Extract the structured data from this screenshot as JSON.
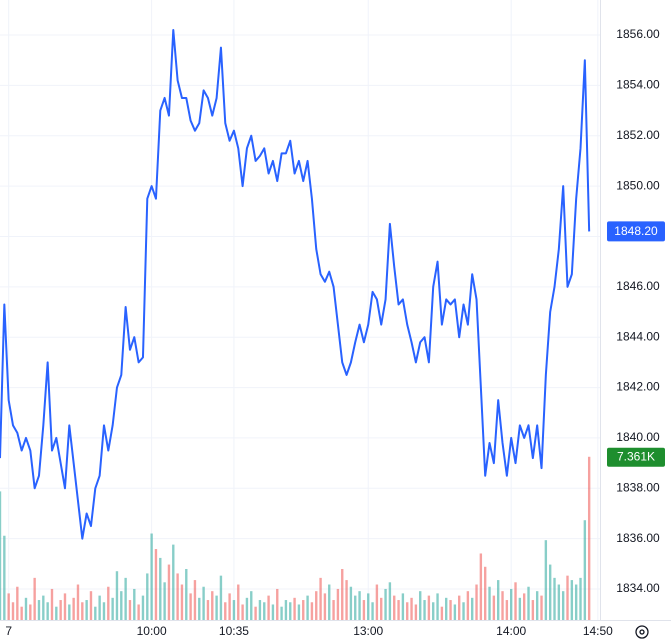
{
  "chart_data": {
    "type": "line",
    "xlim": [
      0,
      138.5
    ],
    "xticks": [
      {
        "value": 2,
        "label": "7"
      },
      {
        "value": 35,
        "label": "10:00"
      },
      {
        "value": 54,
        "label": "10:35"
      },
      {
        "value": 85,
        "label": "13:00"
      },
      {
        "value": 118,
        "label": "14:00"
      },
      {
        "value": 138,
        "label": "14:50"
      }
    ],
    "ylim": [
      1832.77,
      1857.39
    ],
    "yticks": [
      {
        "value": 1834,
        "label": "1834.00"
      },
      {
        "value": 1836,
        "label": "1836.00"
      },
      {
        "value": 1838,
        "label": "1838.00"
      },
      {
        "value": 1840,
        "label": "1840.00"
      },
      {
        "value": 1842,
        "label": "1842.00"
      },
      {
        "value": 1844,
        "label": "1844.00"
      },
      {
        "value": 1846,
        "label": "1846.00"
      },
      {
        "value": 1848,
        "label": "1848.00"
      },
      {
        "value": 1850,
        "label": "1850.00"
      },
      {
        "value": 1852,
        "label": "1852.00"
      },
      {
        "value": 1854,
        "label": "1854.00"
      },
      {
        "value": 1856,
        "label": "1856.00"
      }
    ],
    "grid": true,
    "volume_ylim": [
      0,
      27.96
    ],
    "up_color": "#26a69a",
    "down_color": "#ef5350",
    "volume_badge_color": "#1e8e2e",
    "series": [
      {
        "color": "#2962ff",
        "last_label": "1848.20",
        "values": [
          1839.2,
          1845.3,
          1841.5,
          1840.5,
          1840.2,
          1839.5,
          1840,
          1839.5,
          1838,
          1838.5,
          1840.5,
          1843,
          1839.5,
          1840,
          1839,
          1838,
          1840.5,
          1839,
          1837.5,
          1836,
          1837,
          1836.5,
          1838,
          1838.5,
          1840.5,
          1839.5,
          1840.5,
          1842,
          1842.5,
          1845.2,
          1843.5,
          1844,
          1843,
          1843.2,
          1849.5,
          1850,
          1849.5,
          1853,
          1853.5,
          1852.8,
          1856.2,
          1854.2,
          1853.5,
          1853.5,
          1852.6,
          1852.2,
          1852.5,
          1853.8,
          1853.5,
          1852.8,
          1853.5,
          1855.5,
          1852.5,
          1851.8,
          1852.2,
          1851.5,
          1850,
          1851.5,
          1852,
          1851,
          1851.2,
          1851.5,
          1850.5,
          1851,
          1850.2,
          1851.3,
          1851.3,
          1851.8,
          1850.5,
          1851,
          1850.2,
          1851,
          1849.5,
          1847.5,
          1846.5,
          1846.2,
          1846.6,
          1846,
          1844.5,
          1843,
          1842.5,
          1843,
          1843.8,
          1844.5,
          1843.8,
          1844.5,
          1845.8,
          1845.5,
          1844.5,
          1845.5,
          1848.5,
          1846.8,
          1845.3,
          1845.5,
          1844.5,
          1843.8,
          1843,
          1843.8,
          1844,
          1843,
          1846,
          1847,
          1844.5,
          1845.5,
          1845.3,
          1845.5,
          1844,
          1845.3,
          1844.5,
          1846.5,
          1845.5,
          1842,
          1838.5,
          1839.8,
          1839,
          1841.5,
          1839.8,
          1838.5,
          1840,
          1839,
          1840.5,
          1840,
          1840.5,
          1839.2,
          1840.5,
          1838.8,
          1842.5,
          1845,
          1846,
          1847.5,
          1850,
          1846,
          1846.5,
          1849.5,
          1851.5,
          1855,
          1848.2
        ]
      },
      {
        "type": "volume",
        "last_label": "7.361K",
        "values": [
          5.8,
          3.8,
          1.2,
          0.8,
          1.5,
          0.6,
          1.0,
          0.7,
          1.9,
          0.9,
          1.1,
          0.8,
          1.4,
          0.6,
          0.9,
          1.2,
          0.7,
          1.0,
          1.6,
          0.8,
          0.9,
          1.3,
          0.6,
          1.1,
          0.8,
          1.5,
          1.0,
          2.2,
          1.3,
          1.9,
          0.9,
          1.4,
          0.7,
          1.1,
          2.1,
          3.9,
          3.2,
          2.8,
          1.7,
          2.5,
          3.4,
          2.1,
          1.6,
          2.3,
          1.2,
          1.8,
          1.0,
          1.5,
          0.9,
          1.3,
          1.1,
          2.0,
          0.8,
          1.2,
          0.9,
          1.6,
          0.7,
          1.0,
          1.3,
          0.6,
          0.9,
          0.8,
          1.1,
          0.7,
          1.4,
          0.6,
          0.9,
          0.8,
          1.0,
          0.7,
          0.9,
          1.1,
          0.8,
          1.3,
          1.9,
          1.2,
          1.6,
          0.9,
          1.4,
          2.3,
          1.8,
          1.5,
          1.1,
          1.3,
          0.9,
          1.2,
          0.8,
          1.6,
          1.0,
          1.4,
          1.7,
          1.1,
          0.9,
          1.2,
          0.8,
          1.0,
          0.7,
          1.3,
          0.9,
          1.1,
          0.8,
          1.2,
          0.6,
          1.0,
          0.9,
          0.7,
          1.1,
          0.8,
          1.3,
          1.0,
          1.6,
          3.0,
          2.4,
          1.5,
          1.1,
          1.8,
          1.3,
          0.9,
          1.4,
          1.7,
          1.0,
          1.2,
          1.5,
          0.9,
          1.3,
          1.1,
          3.6,
          2.5,
          1.9,
          1.6,
          1.3,
          2.0,
          1.8,
          1.6,
          1.9,
          4.5,
          7.361
        ]
      }
    ]
  }
}
